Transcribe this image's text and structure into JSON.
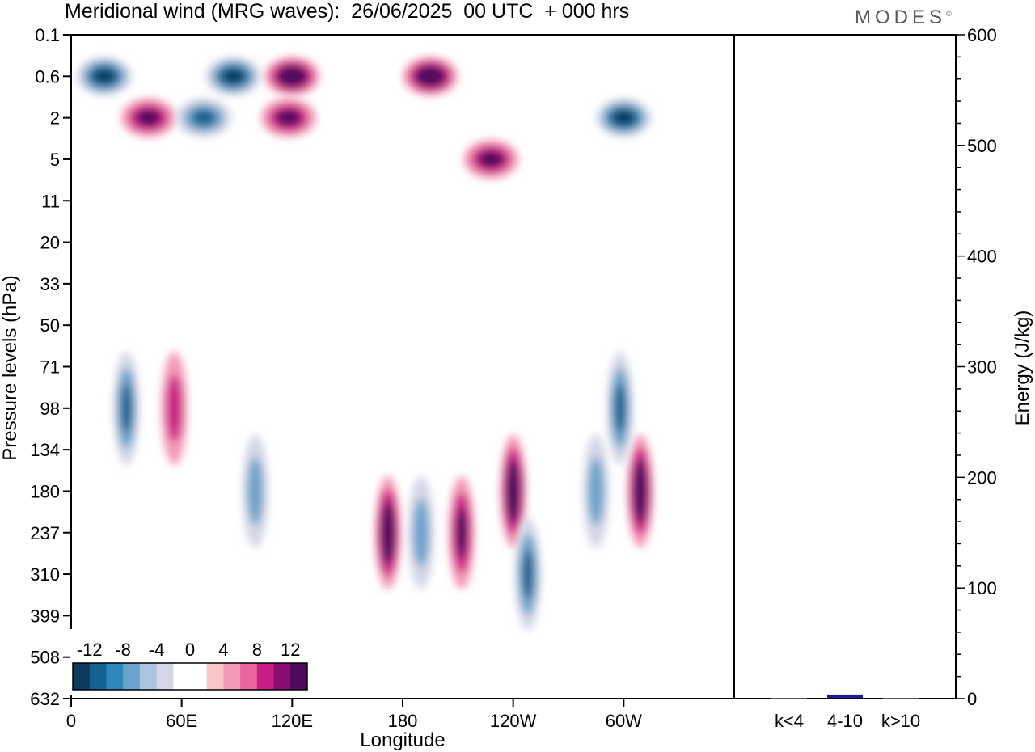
{
  "title": "Meridional wind (MRG waves):  26/06/2025  00 UTC  + 000 hrs",
  "logo": "MODES",
  "logo_mark": "©",
  "chart_data": {
    "type": "heatmap",
    "title": "Meridional wind (MRG waves):  26/06/2025  00 UTC  + 000 hrs",
    "xlabel": "Longitude",
    "ylabel": "Pressure levels (hPa)",
    "x_ticks": [
      "0",
      "60E",
      "120E",
      "180",
      "120W",
      "60W"
    ],
    "x_range": [
      0,
      360
    ],
    "y_ticks": [
      "0.1",
      "0.6",
      "2",
      "5",
      "11",
      "20",
      "33",
      "50",
      "71",
      "98",
      "134",
      "180",
      "237",
      "310",
      "399",
      "508",
      "632"
    ],
    "colorbar": {
      "labels": [
        "-12",
        "-8",
        "-4",
        "0",
        "4",
        "8",
        "12"
      ],
      "colors": [
        "#0b3a5c",
        "#13628f",
        "#2f86bb",
        "#6aa3cb",
        "#a9c4df",
        "#d3d6e6",
        "#ffffff",
        "#ffffff",
        "#f8c6c6",
        "#f49ab6",
        "#e9669f",
        "#c81f84",
        "#8a0b73",
        "#4f0a5e"
      ]
    },
    "features": [
      {
        "lon": 18,
        "level": "0.6",
        "value": -16
      },
      {
        "lon": 42,
        "level": "2",
        "value": 12
      },
      {
        "lon": 72,
        "level": "2",
        "value": -12
      },
      {
        "lon": 88,
        "level": "0.6",
        "value": -14
      },
      {
        "lon": 120,
        "level": "0.6",
        "value": 16
      },
      {
        "lon": 118,
        "level": "2",
        "value": 12
      },
      {
        "lon": 195,
        "level": "0.6",
        "value": 16
      },
      {
        "lon": 228,
        "level": "5",
        "value": 10
      },
      {
        "lon": 300,
        "level": "2",
        "value": -14
      },
      {
        "lon": 30,
        "level": "98",
        "value": -10
      },
      {
        "lon": 56,
        "level": "98",
        "value": 8
      },
      {
        "lon": 100,
        "level": "180",
        "value": -6
      },
      {
        "lon": 172,
        "level": "237",
        "value": 14
      },
      {
        "lon": 190,
        "level": "237",
        "value": -8
      },
      {
        "lon": 212,
        "level": "237",
        "value": 10
      },
      {
        "lon": 240,
        "level": "180",
        "value": 14
      },
      {
        "lon": 248,
        "level": "310",
        "value": -10
      },
      {
        "lon": 285,
        "level": "180",
        "value": -8
      },
      {
        "lon": 309,
        "level": "180",
        "value": 16
      },
      {
        "lon": 298,
        "level": "98",
        "value": -10
      }
    ],
    "energy_panel": {
      "type": "bar",
      "categories": [
        "k<4",
        "4-10",
        "k>10"
      ],
      "values": [
        0,
        3,
        0
      ],
      "ylabel": "Energy (J/kg)",
      "ylim": [
        0,
        600
      ],
      "y_ticks": [
        "0",
        "100",
        "200",
        "300",
        "400",
        "500",
        "600"
      ],
      "bar_color": "#1c1c9c"
    }
  }
}
